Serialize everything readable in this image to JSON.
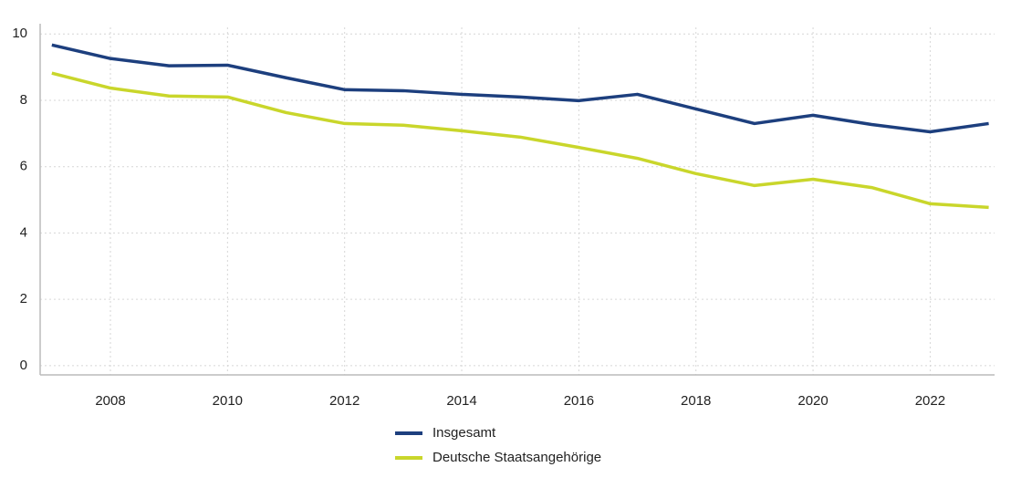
{
  "chart_data": {
    "type": "line",
    "x": [
      2007,
      2008,
      2009,
      2010,
      2011,
      2012,
      2013,
      2014,
      2015,
      2016,
      2017,
      2018,
      2019,
      2020,
      2021,
      2022,
      2023
    ],
    "series": [
      {
        "name": "Insgesamt",
        "color": "#1d3f7e",
        "values": [
          9.67,
          9.26,
          9.04,
          9.06,
          8.68,
          8.32,
          8.29,
          8.18,
          8.1,
          7.99,
          8.18,
          7.74,
          7.3,
          7.55,
          7.27,
          7.05,
          7.3
        ]
      },
      {
        "name": "Deutsche Staatsangehörige",
        "color": "#c9d62b",
        "values": [
          8.82,
          8.37,
          8.13,
          8.1,
          7.63,
          7.3,
          7.25,
          7.08,
          6.89,
          6.58,
          6.25,
          5.79,
          5.43,
          5.62,
          5.37,
          4.88,
          4.77
        ]
      }
    ],
    "xlim": [
      2006.8,
      2023.1
    ],
    "ylim": [
      -0.28,
      10.2
    ],
    "xticks": [
      2008,
      2010,
      2012,
      2014,
      2016,
      2018,
      2020,
      2022
    ],
    "yticks": [
      0,
      2,
      4,
      6,
      8,
      10
    ],
    "grid": true,
    "legend": "bottom"
  }
}
